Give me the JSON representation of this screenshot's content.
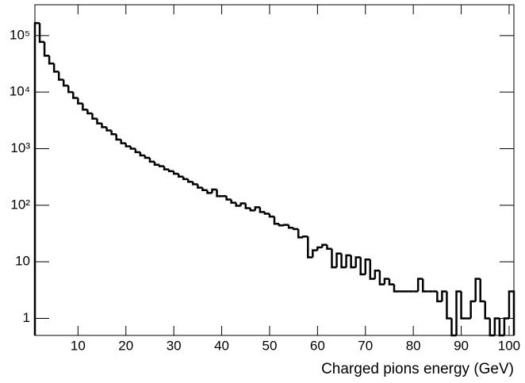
{
  "chart_data": {
    "type": "histogram",
    "xlabel": "Charged pions energy (GeV)",
    "bins": [
      1,
      2,
      3,
      4,
      5,
      6,
      7,
      8,
      9,
      10,
      11,
      12,
      13,
      14,
      15,
      16,
      17,
      18,
      19,
      20,
      21,
      22,
      23,
      24,
      25,
      26,
      27,
      28,
      29,
      30,
      31,
      32,
      33,
      34,
      35,
      36,
      37,
      38,
      39,
      40,
      41,
      42,
      43,
      44,
      45,
      46,
      47,
      48,
      49,
      50,
      51,
      52,
      53,
      54,
      55,
      56,
      57,
      58,
      59,
      60,
      61,
      62,
      63,
      64,
      65,
      66,
      67,
      68,
      69,
      70,
      71,
      72,
      73,
      74,
      75,
      76,
      77,
      78,
      79,
      80,
      81,
      82,
      83,
      84,
      85,
      86,
      87,
      88,
      89,
      90,
      91,
      92,
      93,
      94,
      95,
      96,
      97,
      98,
      99,
      100,
      101
    ],
    "values": [
      166000,
      77000,
      44000,
      32000,
      23000,
      16600,
      13000,
      10000,
      7900,
      6300,
      4900,
      4200,
      3400,
      2800,
      2400,
      2100,
      1800,
      1450,
      1250,
      1100,
      1000,
      870,
      760,
      690,
      590,
      520,
      490,
      430,
      400,
      360,
      320,
      290,
      260,
      235,
      205,
      185,
      165,
      190,
      145,
      145,
      126,
      111,
      98,
      108,
      89,
      81,
      92,
      76,
      71,
      63,
      47,
      44,
      45,
      40,
      38,
      27,
      28,
      12,
      16,
      18,
      20,
      17,
      8,
      14,
      8,
      13,
      8,
      12,
      6,
      11,
      5,
      7,
      4,
      5,
      4,
      3,
      3,
      3,
      3,
      3,
      5,
      3,
      3,
      3,
      2,
      3,
      1,
      0,
      3,
      1,
      1,
      2,
      5,
      2,
      1,
      0,
      1,
      0,
      1,
      3
    ],
    "color": "#000000",
    "log_y": true,
    "xlim": [
      1,
      101
    ],
    "xticks": [
      10,
      20,
      30,
      40,
      50,
      60,
      70,
      80,
      90,
      100
    ],
    "ylim": [
      0.5,
      350000
    ],
    "yticks": [
      1,
      10,
      {
        "value": 100,
        "label": "10²"
      },
      {
        "value": 1000,
        "label": "10³"
      },
      {
        "value": 10000,
        "label": "10⁴"
      },
      {
        "value": 100000,
        "label": "10⁵"
      }
    ]
  }
}
